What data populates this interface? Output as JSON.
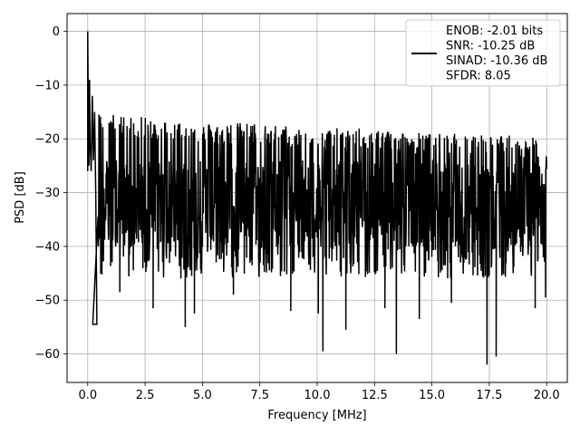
{
  "chart_data": {
    "type": "line",
    "title": "",
    "xlabel": "Frequency [MHz]",
    "ylabel": "PSD [dB]",
    "xlim": [
      -0.9,
      20.9
    ],
    "ylim": [
      -65.3,
      3.3
    ],
    "grid": true,
    "legend_placement": "top-right",
    "xticks": [
      0.0,
      2.5,
      5.0,
      7.5,
      10.0,
      12.5,
      15.0,
      17.5,
      20.0
    ],
    "xtick_labels": [
      "0.0",
      "2.5",
      "5.0",
      "7.5",
      "10.0",
      "12.5",
      "15.0",
      "17.5",
      "20.0"
    ],
    "yticks": [
      0,
      -10,
      -20,
      -30,
      -40,
      -50,
      -60
    ],
    "ytick_labels": [
      "0",
      "−10",
      "−20",
      "−30",
      "−40",
      "−50",
      "−60"
    ],
    "series": [
      {
        "name": "ENOB: -2.01 bits\nSNR: -10.25 dB\nSINAD: -10.36 dB\nSFDR: 8.05",
        "color": "#000000",
        "description": "noise-floor power spectral density with single tone near 0 MHz",
        "peak": {
          "x": 0.0,
          "y": 0.0
        },
        "early_points": [
          {
            "x": 0.0,
            "y": -26
          },
          {
            "x": 0.0,
            "y": 0.0
          },
          {
            "x": 0.02,
            "y": -12
          },
          {
            "x": 0.05,
            "y": -25
          },
          {
            "x": 0.08,
            "y": -9
          },
          {
            "x": 0.1,
            "y": -20
          },
          {
            "x": 0.15,
            "y": -26
          },
          {
            "x": 0.2,
            "y": -12
          },
          {
            "x": 0.25,
            "y": -24
          },
          {
            "x": 0.3,
            "y": -15
          },
          {
            "x": 0.35,
            "y": -30
          },
          {
            "x": 0.4,
            "y": -54.5
          }
        ],
        "noise_floor_mean": -30,
        "upper_envelope": [
          {
            "x": 0.5,
            "y": -17
          },
          {
            "x": 2.5,
            "y": -18
          },
          {
            "x": 5.0,
            "y": -19
          },
          {
            "x": 7.5,
            "y": -19
          },
          {
            "x": 10.0,
            "y": -20
          },
          {
            "x": 12.5,
            "y": -20
          },
          {
            "x": 15.0,
            "y": -21
          },
          {
            "x": 17.5,
            "y": -21
          },
          {
            "x": 20.0,
            "y": -22
          }
        ],
        "deep_dips": [
          {
            "x": 0.22,
            "y": -54.5
          },
          {
            "x": 1.4,
            "y": -48.5
          },
          {
            "x": 2.85,
            "y": -51.5
          },
          {
            "x": 4.25,
            "y": -55.0
          },
          {
            "x": 4.65,
            "y": -52.5
          },
          {
            "x": 6.35,
            "y": -49.0
          },
          {
            "x": 8.85,
            "y": -52.0
          },
          {
            "x": 10.05,
            "y": -52.5
          },
          {
            "x": 10.25,
            "y": -59.5
          },
          {
            "x": 11.25,
            "y": -55.5
          },
          {
            "x": 12.95,
            "y": -51.5
          },
          {
            "x": 13.45,
            "y": -60.0
          },
          {
            "x": 14.45,
            "y": -53.5
          },
          {
            "x": 15.85,
            "y": -50.5
          },
          {
            "x": 17.4,
            "y": -62.0
          },
          {
            "x": 17.8,
            "y": -60.5
          },
          {
            "x": 19.5,
            "y": -51.5
          },
          {
            "x": 19.95,
            "y": -49.5
          }
        ],
        "x_end": 20.0
      }
    ]
  }
}
